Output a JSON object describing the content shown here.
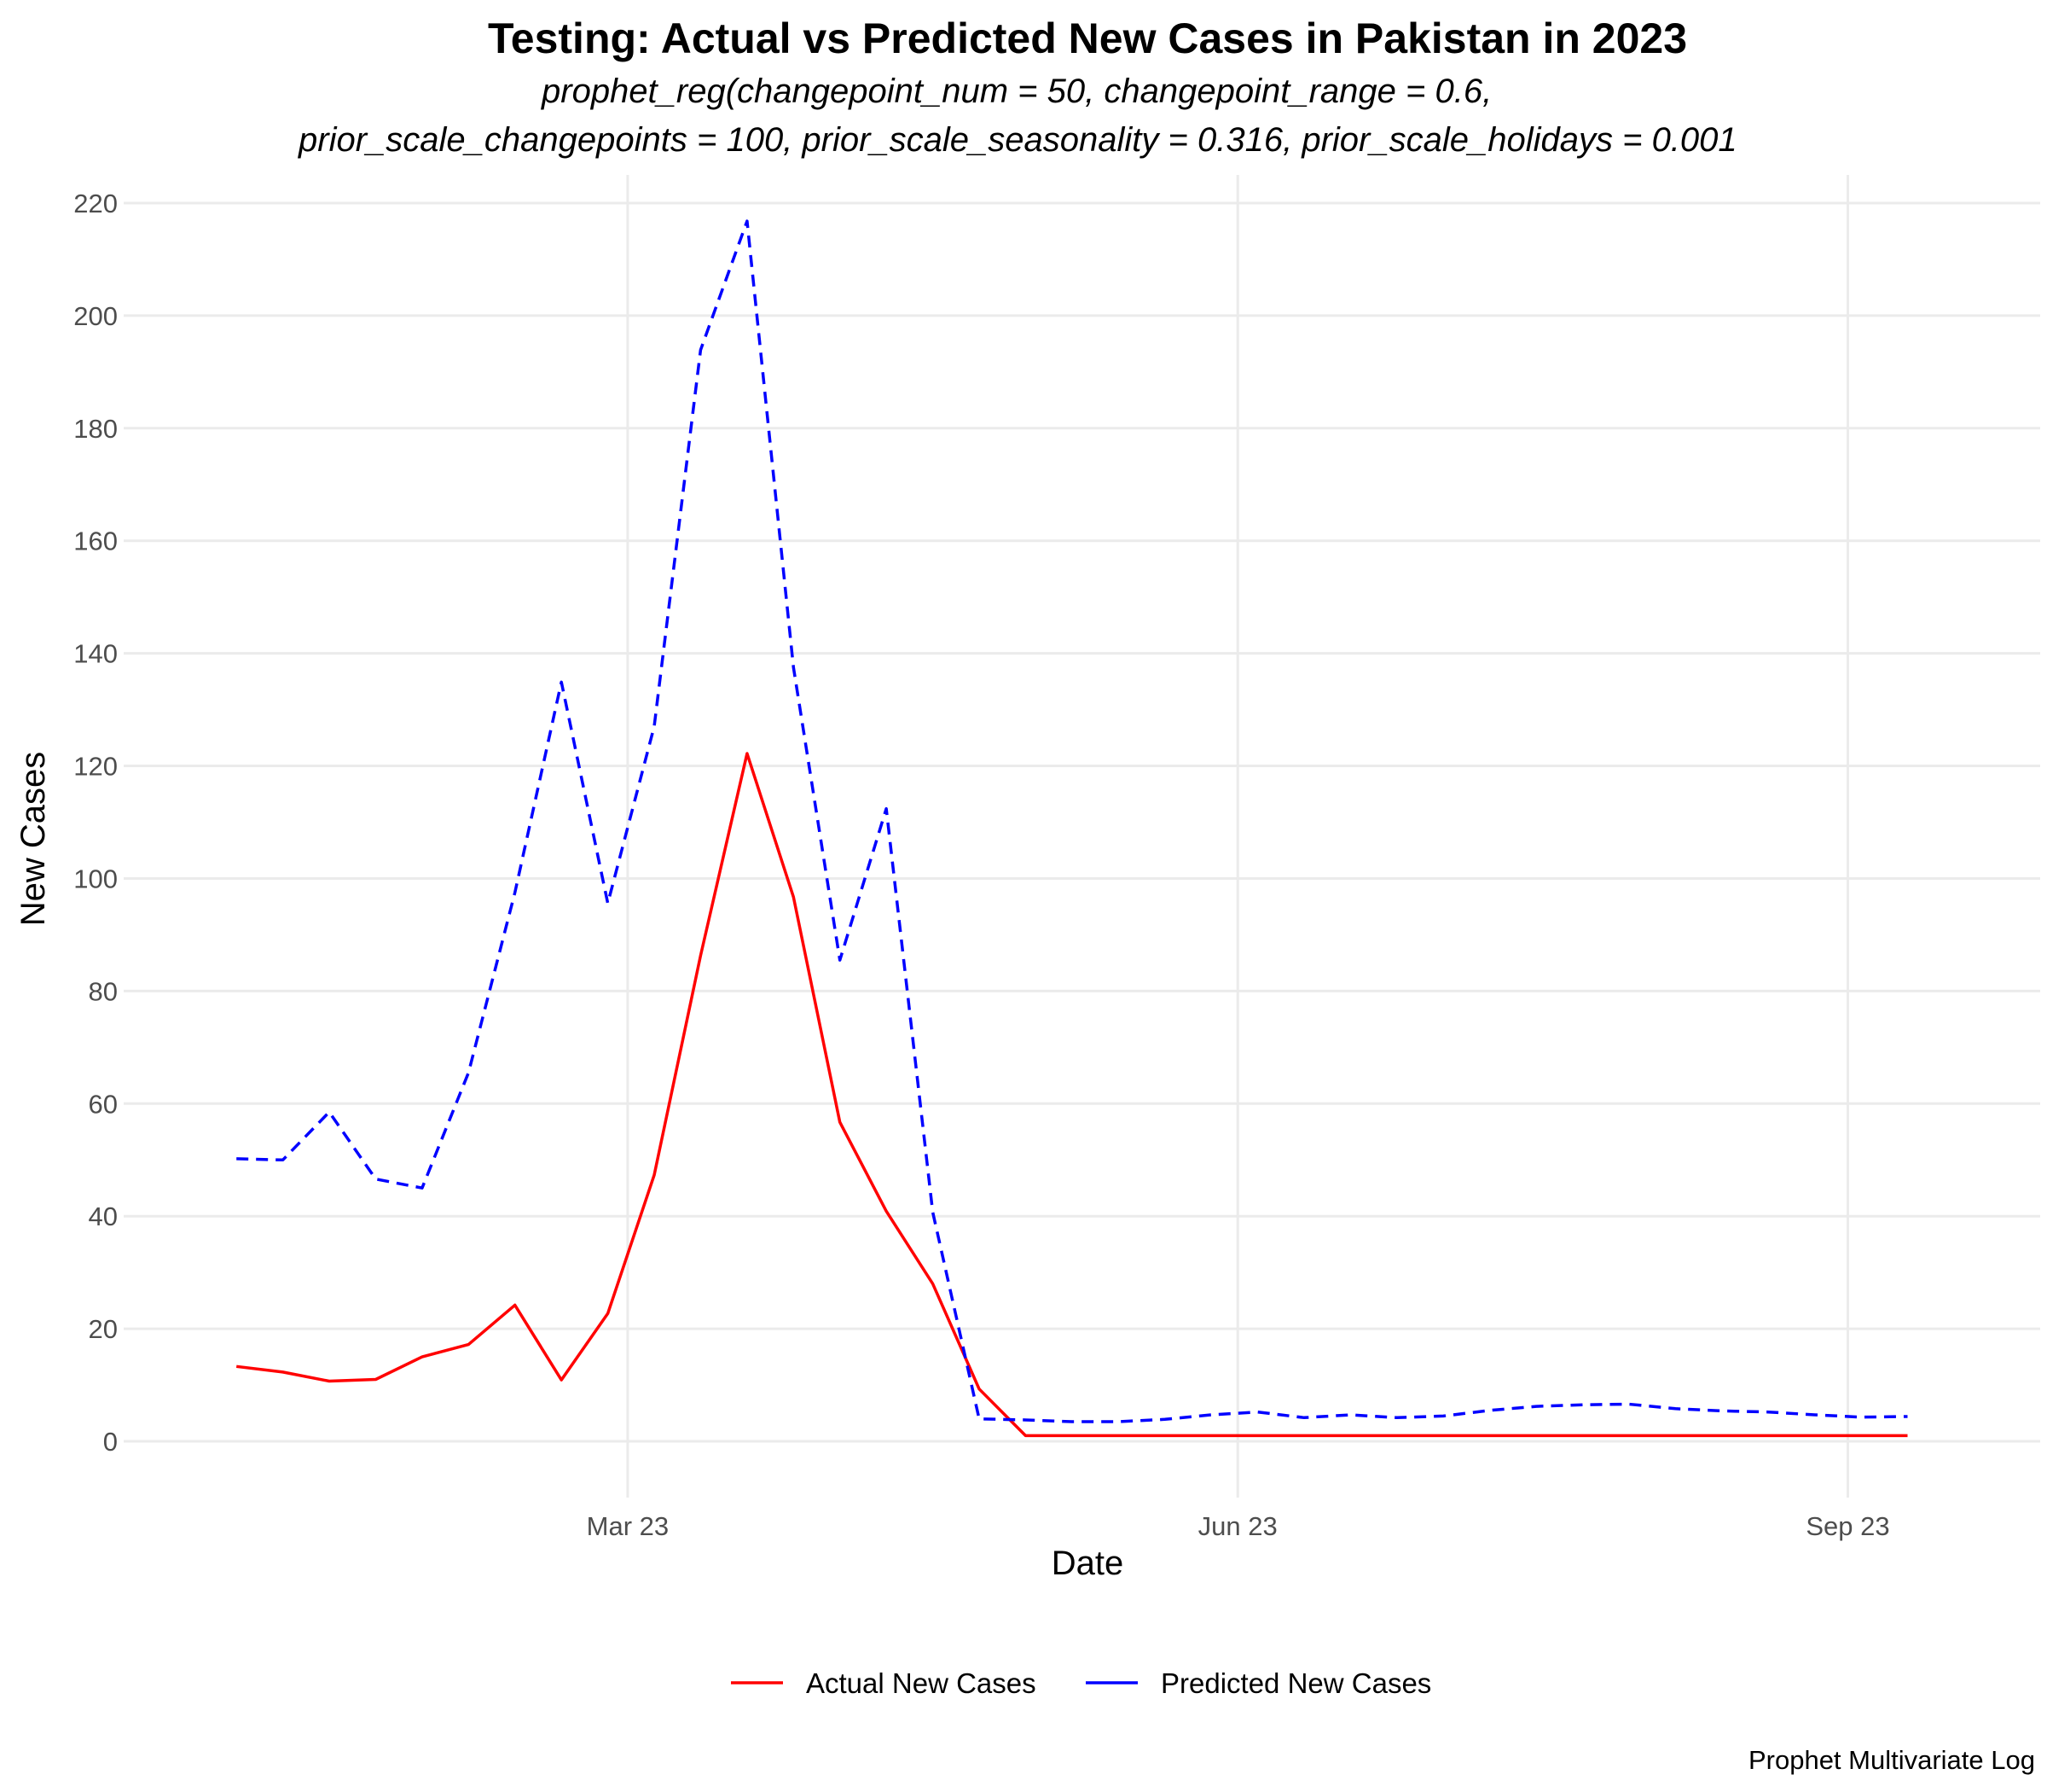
{
  "chart_data": {
    "type": "line",
    "title": "Testing: Actual vs Predicted New Cases in Pakistan in 2023",
    "subtitle_lines": [
      "prophet_reg(changepoint_num = 50, changepoint_range = 0.6,",
      "prior_scale_changepoints = 100, prior_scale_seasonality = 0.316, prior_scale_holidays = 0.001"
    ],
    "xlabel": "Date",
    "ylabel": "New Cases",
    "caption": "Prophet Multivariate Log",
    "x_ticks": [
      {
        "date": "2023-03-01",
        "label": "Mar 23"
      },
      {
        "date": "2023-06-01",
        "label": "Jun 23"
      },
      {
        "date": "2023-09-01",
        "label": "Sep 23"
      }
    ],
    "xlim": [
      "2022-12-15",
      "2023-09-30"
    ],
    "ylim": [
      -10,
      225
    ],
    "y_ticks": [
      0,
      20,
      40,
      60,
      80,
      100,
      120,
      140,
      160,
      180,
      200,
      220
    ],
    "grid": true,
    "legend_position": "bottom",
    "series": [
      {
        "name": "Actual New Cases",
        "color": "#ff0000",
        "dash": "solid",
        "x": [
          "2023-01-01",
          "2023-01-08",
          "2023-01-15",
          "2023-01-22",
          "2023-01-29",
          "2023-02-05",
          "2023-02-12",
          "2023-02-19",
          "2023-02-26",
          "2023-03-05",
          "2023-03-12",
          "2023-03-19",
          "2023-03-26",
          "2023-04-02",
          "2023-04-09",
          "2023-04-16",
          "2023-04-23",
          "2023-04-30",
          "2023-05-07",
          "2023-05-14",
          "2023-05-21",
          "2023-05-28",
          "2023-06-04",
          "2023-06-11",
          "2023-06-18",
          "2023-06-25",
          "2023-07-02",
          "2023-07-09",
          "2023-07-16",
          "2023-07-23",
          "2023-07-30",
          "2023-08-06",
          "2023-08-13",
          "2023-08-20",
          "2023-08-27",
          "2023-09-03",
          "2023-09-10"
        ],
        "values": [
          13.3,
          12.3,
          10.7,
          11.0,
          15.0,
          17.2,
          24.2,
          10.9,
          22.7,
          47.3,
          86.3,
          122.2,
          96.7,
          56.7,
          40.9,
          28.0,
          9.3,
          1,
          1,
          1,
          1,
          1,
          1,
          1,
          1,
          1,
          1,
          1,
          1,
          1,
          1,
          1,
          1,
          1,
          1,
          1,
          1
        ]
      },
      {
        "name": "Predicted New Cases",
        "color": "#0000ff",
        "dash": "dashed",
        "x": [
          "2023-01-01",
          "2023-01-08",
          "2023-01-15",
          "2023-01-22",
          "2023-01-29",
          "2023-02-05",
          "2023-02-12",
          "2023-02-19",
          "2023-02-26",
          "2023-03-05",
          "2023-03-12",
          "2023-03-19",
          "2023-03-26",
          "2023-04-02",
          "2023-04-09",
          "2023-04-16",
          "2023-04-23",
          "2023-04-30",
          "2023-05-07",
          "2023-05-14",
          "2023-05-21",
          "2023-05-28",
          "2023-06-04",
          "2023-06-11",
          "2023-06-18",
          "2023-06-25",
          "2023-07-02",
          "2023-07-09",
          "2023-07-16",
          "2023-07-23",
          "2023-07-30",
          "2023-08-06",
          "2023-08-13",
          "2023-08-20",
          "2023-08-27",
          "2023-09-03",
          "2023-09-10"
        ],
        "values": [
          50.2,
          50.0,
          58.5,
          46.6,
          45.0,
          65.5,
          97.5,
          134.9,
          95.6,
          127.0,
          193.9,
          216.8,
          137.5,
          85.5,
          112.4,
          40.7,
          4.0,
          3.8,
          3.5,
          3.5,
          3.9,
          4.7,
          5.2,
          4.2,
          4.7,
          4.2,
          4.5,
          5.5,
          6.2,
          6.5,
          6.6,
          5.8,
          5.4,
          5.2,
          4.7,
          4.3,
          4.4
        ]
      }
    ]
  }
}
